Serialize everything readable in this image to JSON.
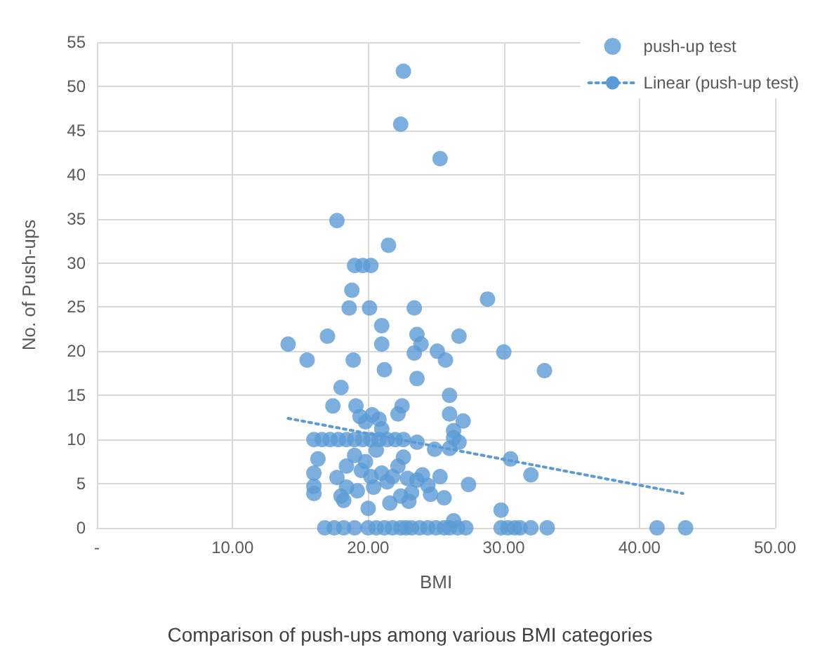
{
  "chart_data": {
    "type": "scatter",
    "xlabel": "BMI",
    "ylabel": "No. of Push-ups",
    "annotations": [
      "Comparison of push-ups among various BMI categories"
    ],
    "xlim": [
      0,
      50
    ],
    "xticks": [
      {
        "value": 0,
        "label": "-"
      },
      {
        "value": 10,
        "label": "10.00"
      },
      {
        "value": 20,
        "label": "20.00"
      },
      {
        "value": 30,
        "label": "30.00"
      },
      {
        "value": 40,
        "label": "40.00"
      },
      {
        "value": 50,
        "label": "50.00"
      }
    ],
    "ylim": [
      0,
      55
    ],
    "yticks": [
      0,
      5,
      10,
      15,
      20,
      25,
      30,
      35,
      40,
      45,
      50,
      55
    ],
    "grid": true,
    "legend": "top right",
    "marker": "circle",
    "series": [
      {
        "name": "push-up test",
        "color": "#5b9bd5",
        "x": [
          22.6,
          22.4,
          25.3,
          17.7,
          21.5,
          19.0,
          19.6,
          20.2,
          18.8,
          28.8,
          18.6,
          20.1,
          23.4,
          17.0,
          14.1,
          15.5,
          18.9,
          21.0,
          21.0,
          23.6,
          23.9,
          23.4,
          25.1,
          25.7,
          26.7,
          30.0,
          33.0,
          21.2,
          23.6,
          18.0,
          26.0,
          17.4,
          19.1,
          16.0,
          16.6,
          17.2,
          17.8,
          18.4,
          19.0,
          19.6,
          20.2,
          20.8,
          21.4,
          22.0,
          22.6,
          23.6,
          26.7,
          19.4,
          19.8,
          20.3,
          20.8,
          21.0,
          22.2,
          22.5,
          26.0,
          27.0,
          26.3,
          16.3,
          17.7,
          18.4,
          19.0,
          19.5,
          19.8,
          20.2,
          20.6,
          21.0,
          21.4,
          21.8,
          22.2,
          22.6,
          22.9,
          23.2,
          23.6,
          24.0,
          24.4,
          24.9,
          25.3,
          25.6,
          26.0,
          26.3,
          24.6,
          23.0,
          22.4,
          21.6,
          20.4,
          19.2,
          18.4,
          18.0,
          18.2,
          16.0,
          16.0,
          16.0,
          27.4,
          29.8,
          30.5,
          32.0,
          20.0,
          26.3,
          16.8,
          17.5,
          18.2,
          19.0,
          20.0,
          20.6,
          21.2,
          21.8,
          22.4,
          22.8,
          23.2,
          23.8,
          24.4,
          25.0,
          25.6,
          26.0,
          26.6,
          27.2,
          29.8,
          30.3,
          30.8,
          31.2,
          32.0,
          33.2,
          41.3,
          43.4
        ],
        "values": [
          51.7,
          45.7,
          41.8,
          34.8,
          32.0,
          29.7,
          29.7,
          29.7,
          26.9,
          25.9,
          24.9,
          24.9,
          24.9,
          21.7,
          20.8,
          19.0,
          19.0,
          22.9,
          20.8,
          21.9,
          20.8,
          19.8,
          20.0,
          19.0,
          21.7,
          19.9,
          17.8,
          17.9,
          16.9,
          15.9,
          15.0,
          13.8,
          13.8,
          10,
          10,
          10,
          10,
          10,
          10,
          10,
          10,
          10,
          10,
          10,
          10,
          9.7,
          9.7,
          12.6,
          12.0,
          12.8,
          12.3,
          11.2,
          12.9,
          13.8,
          12.9,
          12.1,
          11.0,
          7.8,
          5.7,
          7.0,
          8.2,
          6.5,
          7.5,
          5.8,
          8.8,
          6.2,
          5.2,
          5.8,
          7.0,
          8.0,
          5.6,
          4.0,
          5.4,
          6.0,
          4.8,
          8.9,
          5.8,
          3.4,
          9.0,
          10.2,
          3.8,
          3.0,
          3.6,
          2.8,
          4.6,
          4.2,
          4.6,
          3.6,
          3.1,
          6.2,
          4.7,
          3.9,
          4.9,
          2.0,
          7.8,
          6.0,
          2.2,
          0.8,
          0,
          0,
          0,
          0,
          0,
          0,
          0,
          0,
          0,
          0,
          0,
          0,
          0,
          0,
          0,
          0,
          0,
          0,
          0,
          0,
          0,
          0,
          0,
          0,
          0,
          0
        ]
      },
      {
        "name": "Linear (push-up test)",
        "type": "line",
        "color": "#5b9bd5",
        "line_style": "dotted",
        "marker": "none",
        "x": [
          14.1,
          43.2
        ],
        "values": [
          12.4,
          3.9
        ]
      }
    ]
  }
}
